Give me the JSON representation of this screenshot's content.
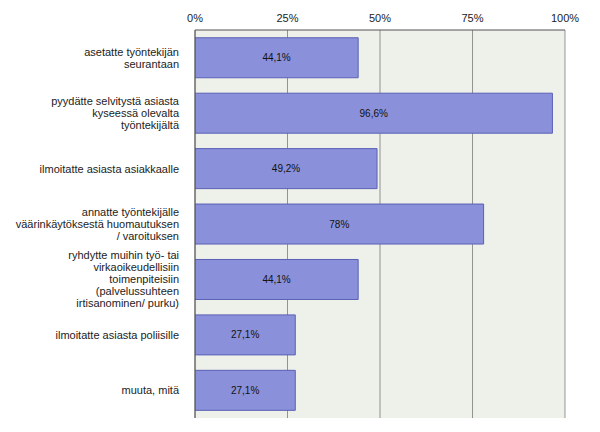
{
  "chart_data": {
    "type": "bar",
    "orientation": "horizontal",
    "categories": [
      "asetatte työntekijän seurantaan",
      "pyydätte selvitystä asiasta kyseessä olevalta työntekijältä",
      "ilmoitatte asiasta asiakkaalle",
      "annatte työntekijälle väärinkäytöksestä huomautuksen / varoituksen",
      "ryhdytte muihin työ- tai virkaoikeudellisiin toimenpiteisiin (palvelussuhteen irtisanominen/ purku)",
      "ilmoitatte asiasta poliisille",
      "muuta, mitä"
    ],
    "values": [
      44.1,
      96.6,
      49.2,
      78,
      44.1,
      27.1,
      27.1
    ],
    "value_labels": [
      "44,1%",
      "96,6%",
      "49,2%",
      "78%",
      "44,1%",
      "27,1%",
      "27,1%"
    ],
    "color": "#8a91da",
    "xlim": [
      0,
      100
    ],
    "xticks": [
      {
        "value": 0,
        "label": "0%"
      },
      {
        "value": 25,
        "label": "25%"
      },
      {
        "value": 50,
        "label": "50%"
      },
      {
        "value": 75,
        "label": "75%"
      },
      {
        "value": 100,
        "label": "100%"
      }
    ],
    "grid": true,
    "data_labels": true
  }
}
